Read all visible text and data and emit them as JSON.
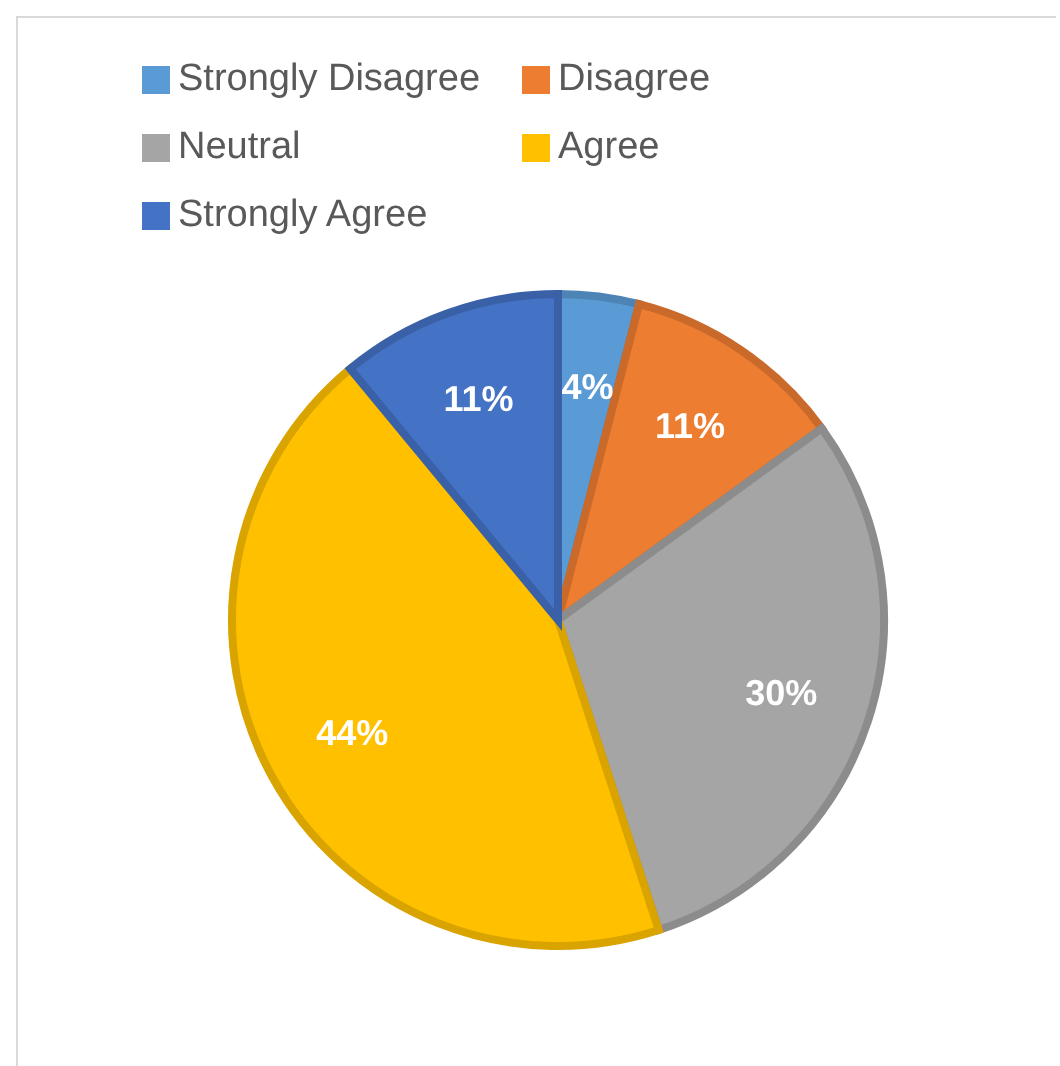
{
  "chart_data": {
    "type": "pie",
    "categories": [
      "Strongly Disagree",
      "Disagree",
      "Neutral",
      "Agree",
      "Strongly Agree"
    ],
    "values": [
      4,
      11,
      30,
      44,
      11
    ],
    "colors": [
      "#5b9bd5",
      "#ed7d31",
      "#a5a5a5",
      "#ffc000",
      "#4472c4"
    ],
    "value_labels": [
      "4%",
      "11%",
      "30%",
      "44%",
      "11%"
    ],
    "legend": "top"
  }
}
